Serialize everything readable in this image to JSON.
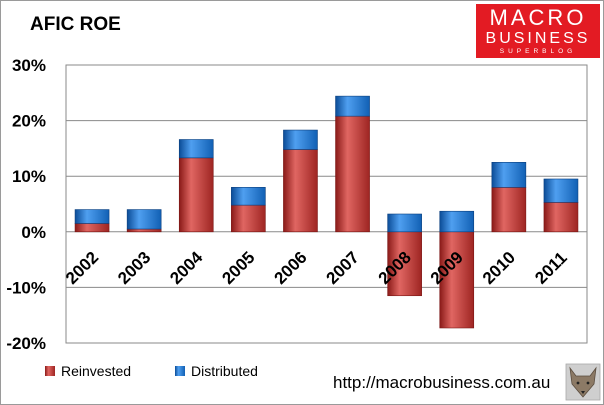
{
  "chart_data": {
    "type": "bar",
    "stacked": true,
    "title": "AFIC ROE",
    "categories": [
      "2002",
      "2003",
      "2004",
      "2005",
      "2006",
      "2007",
      "2008",
      "2009",
      "2010",
      "2011"
    ],
    "series": [
      {
        "name": "Reinvested",
        "color": "#c0322f",
        "values": [
          1.5,
          0.5,
          13.3,
          4.8,
          14.8,
          20.8,
          -11.5,
          -17.3,
          8.0,
          5.3
        ]
      },
      {
        "name": "Distributed",
        "color": "#1a6fc9",
        "values": [
          2.5,
          3.5,
          3.3,
          3.2,
          3.5,
          3.6,
          3.2,
          3.7,
          4.5,
          4.2
        ]
      }
    ],
    "ylim": [
      -20,
      30
    ],
    "yticks": [
      "-20%",
      "-10%",
      "0%",
      "10%",
      "20%",
      "30%"
    ],
    "grid": true,
    "legend": "bottom-left"
  },
  "source_url": "http://macrobusiness.com.au",
  "logo": {
    "line1": "MACRO",
    "line2": "BUSINESS",
    "line3": "SUPERBLOG",
    "color": "#e31b23"
  }
}
